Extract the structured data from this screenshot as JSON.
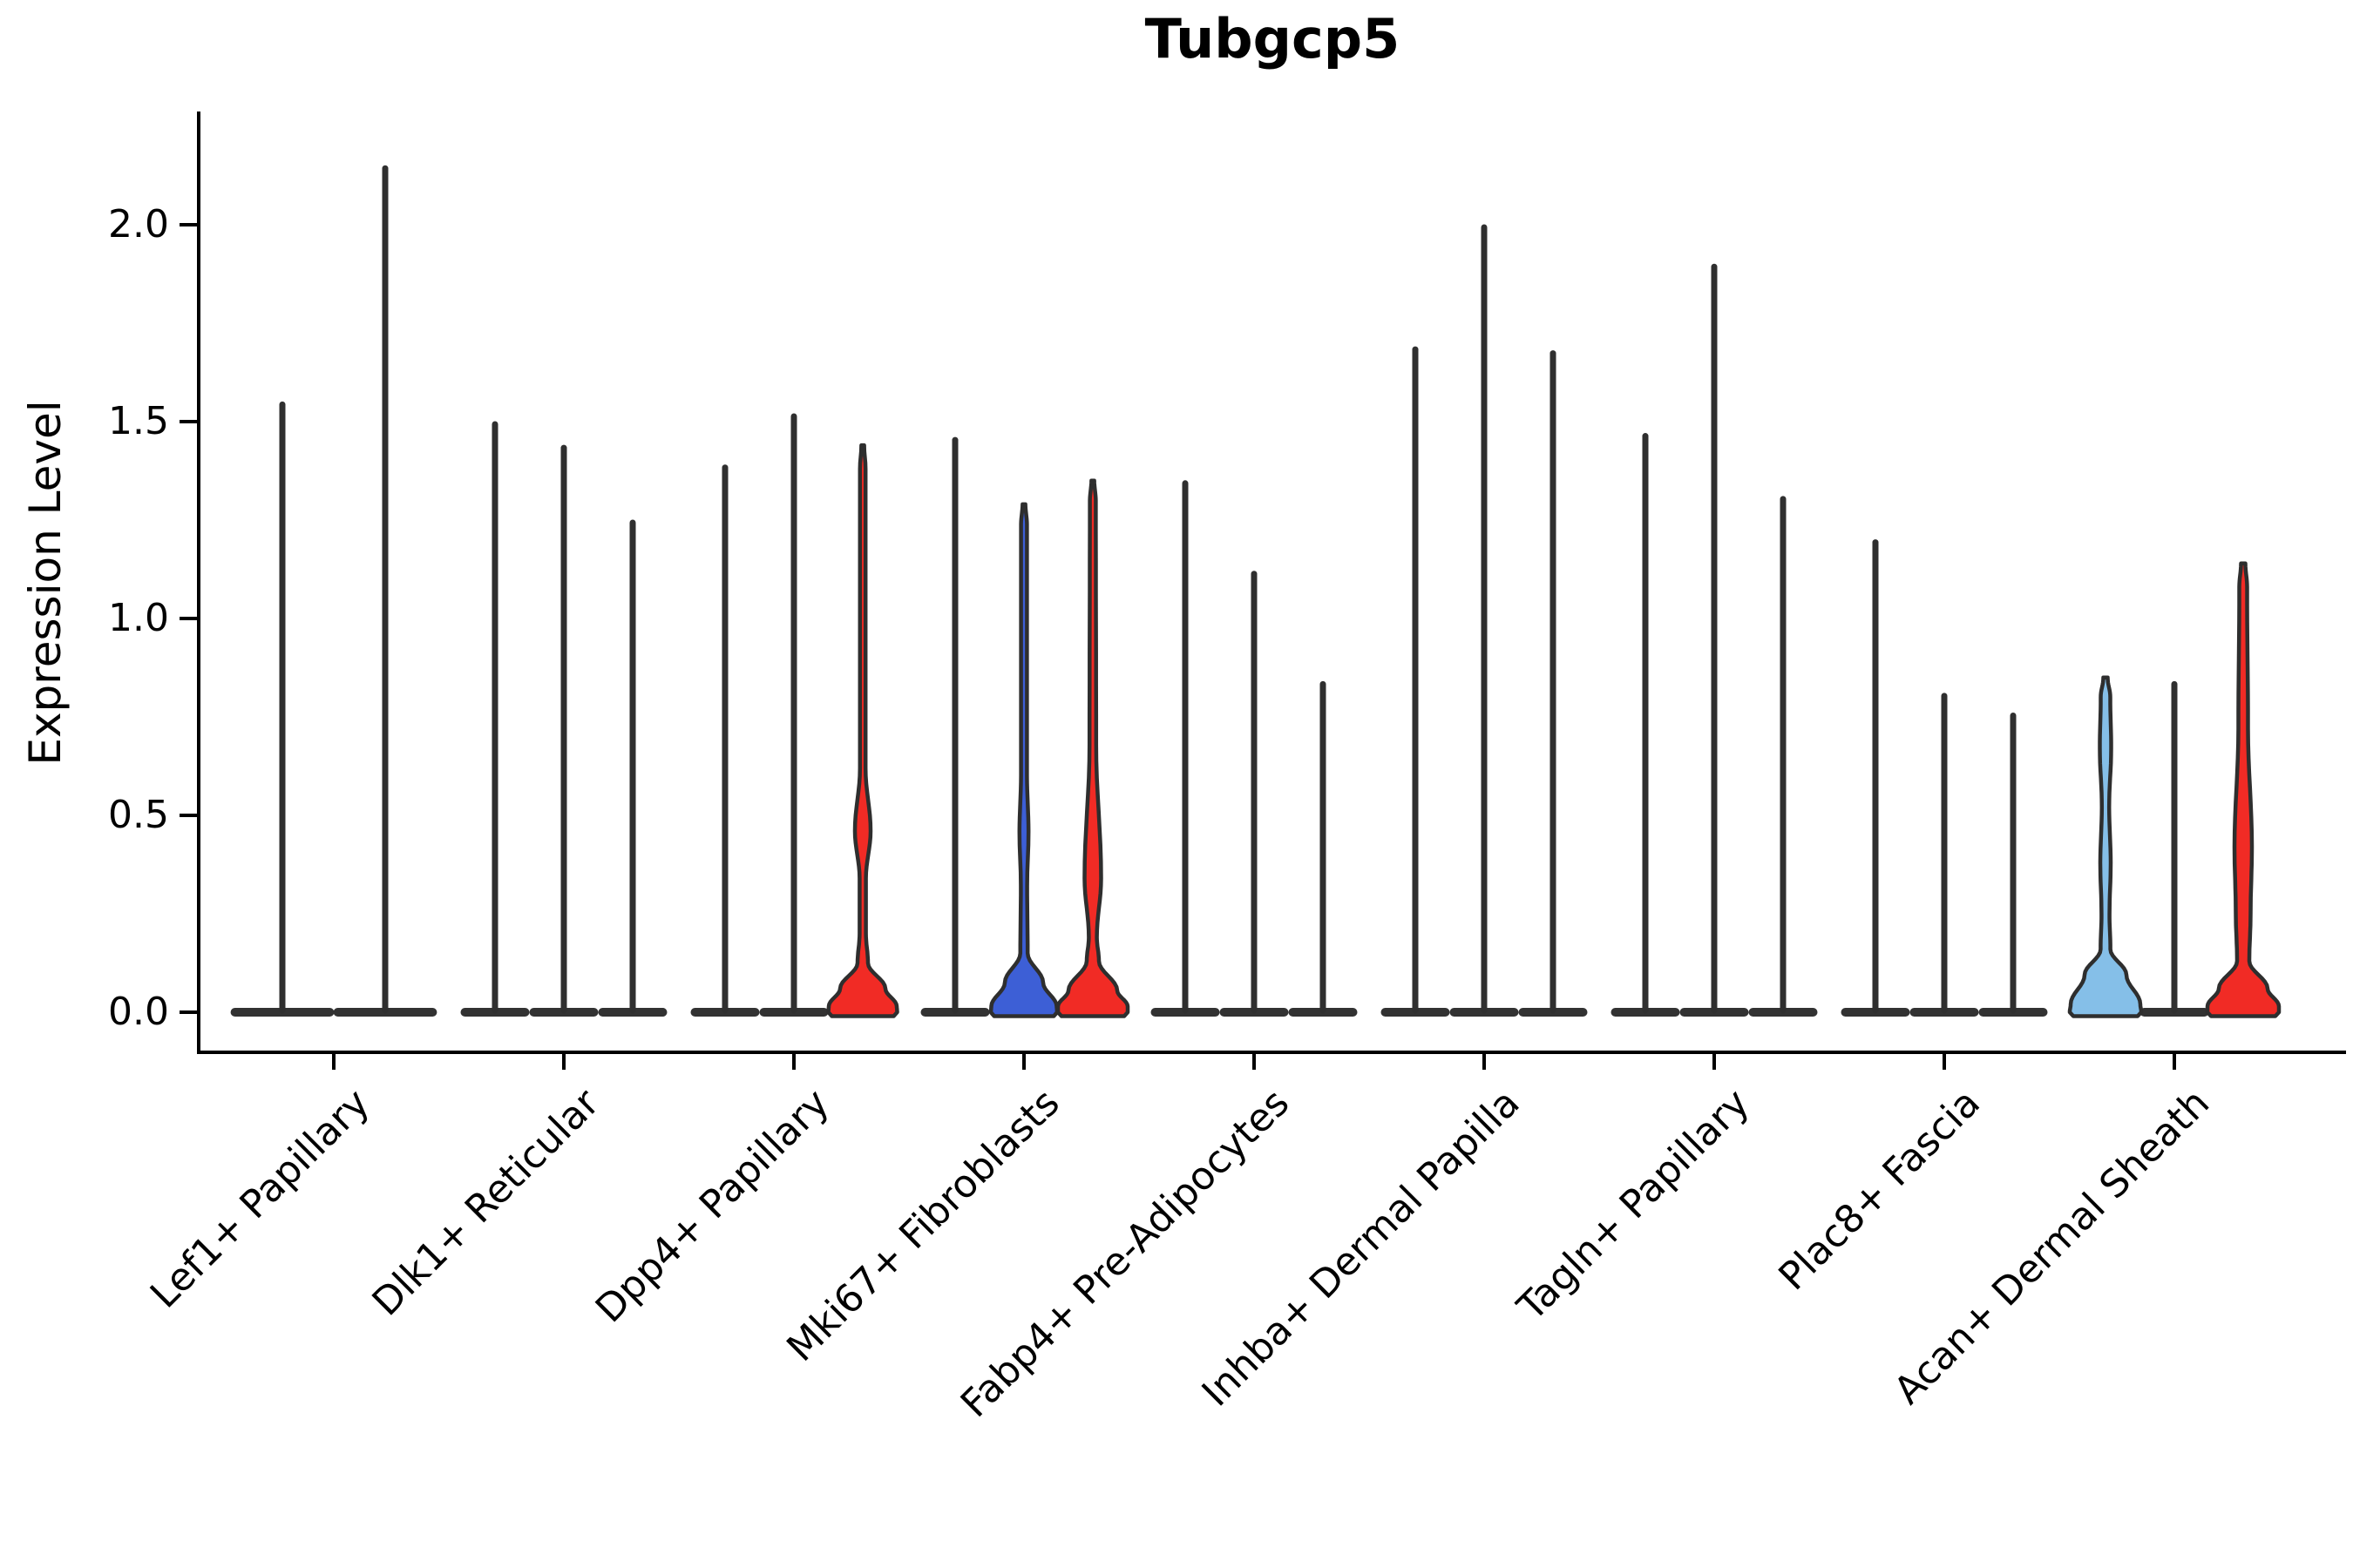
{
  "colors": {
    "red": "#F12B25",
    "blue": "#3D5FD6",
    "lightblue": "#85BFE8",
    "outline": "#2E2E2E",
    "spike": "#2F2F2F",
    "base": "#323232",
    "axis": "#000000"
  },
  "chart_data": {
    "type": "violin",
    "title": "Tubgcp5",
    "ylabel": "Expression Level",
    "xlabel": "",
    "ylim": [
      0,
      2.25
    ],
    "yticks": [
      0.0,
      0.5,
      1.0,
      1.5,
      2.0
    ],
    "grid": false,
    "legend": "none",
    "categories": [
      "Lef1+ Papillary",
      "Dlk1+ Reticular",
      "Dpp4+ Papillary",
      "Mki67+ Fibroblasts",
      "Fabp4+ Pre-Adipocytes",
      "Inhba+ Dermal Papilla",
      "Tagln+ Papillary",
      "Plac8+ Fascia",
      "Acan+ Dermal Sheath"
    ],
    "groups": [
      {
        "label": "Lef1+ Papillary",
        "center": 383,
        "slot_half": 59.4,
        "violins": [
          {
            "x": 324,
            "max": 1.55,
            "fill": null
          },
          {
            "x": 442,
            "max": 2.15,
            "fill": null
          }
        ]
      },
      {
        "label": "Dlk1+ Reticular",
        "center": 647,
        "slot_half": 39.5,
        "violins": [
          {
            "x": 568,
            "max": 1.5,
            "fill": null
          },
          {
            "x": 647,
            "max": 1.44,
            "fill": null
          },
          {
            "x": 726,
            "max": 1.25,
            "fill": null
          }
        ]
      },
      {
        "label": "Dpp4+ Papillary",
        "center": 911,
        "slot_half": 39.5,
        "violins": [
          {
            "x": 832,
            "max": 1.39,
            "fill": null
          },
          {
            "x": 911,
            "max": 1.52,
            "fill": null
          },
          {
            "x": 990,
            "max": 1.44,
            "fill": "red",
            "profile": [
              [
                1.44,
                1.6
              ],
              [
                1.38,
                3.2
              ],
              [
                0.62,
                3.2
              ],
              [
                0.46,
                9.0
              ],
              [
                0.34,
                3.6
              ],
              [
                0.2,
                3.6
              ],
              [
                0.125,
                6.0
              ],
              [
                0.06,
                26.0
              ],
              [
                0.015,
                39.0
              ],
              [
                0.0,
                39.5
              ]
            ]
          }
        ]
      },
      {
        "label": "Mki67+ Fibroblasts",
        "center": 1175,
        "slot_half": 39.5,
        "violins": [
          {
            "x": 1096,
            "max": 1.46,
            "fill": null
          },
          {
            "x": 1175,
            "max": 1.29,
            "fill": "blue",
            "profile": [
              [
                1.29,
                1.6
              ],
              [
                1.24,
                3.4
              ],
              [
                0.6,
                3.4
              ],
              [
                0.46,
                5.2
              ],
              [
                0.32,
                3.6
              ],
              [
                0.15,
                4.2
              ],
              [
                0.075,
                22.0
              ],
              [
                0.015,
                37.5
              ],
              [
                0.0,
                38.0
              ]
            ]
          },
          {
            "x": 1254,
            "max": 1.35,
            "fill": "red",
            "profile": [
              [
                1.35,
                1.6
              ],
              [
                1.3,
                3.4
              ],
              [
                0.68,
                3.8
              ],
              [
                0.34,
                9.5
              ],
              [
                0.19,
                4.6
              ],
              [
                0.13,
                7.0
              ],
              [
                0.055,
                28.0
              ],
              [
                0.015,
                40.0
              ],
              [
                0.0,
                40.0
              ]
            ]
          }
        ]
      },
      {
        "label": "Fabp4+ Pre-Adipocytes",
        "center": 1439,
        "slot_half": 39.5,
        "violins": [
          {
            "x": 1360,
            "max": 1.35,
            "fill": null
          },
          {
            "x": 1439,
            "max": 1.12,
            "fill": null
          },
          {
            "x": 1518,
            "max": 0.84,
            "fill": null
          }
        ]
      },
      {
        "label": "Inhba+ Dermal Papilla",
        "center": 1703,
        "slot_half": 39.5,
        "violins": [
          {
            "x": 1624,
            "max": 1.69,
            "fill": null
          },
          {
            "x": 1703,
            "max": 2.0,
            "fill": null
          },
          {
            "x": 1782,
            "max": 1.68,
            "fill": null
          }
        ]
      },
      {
        "label": "Tagln+ Papillary",
        "center": 1967,
        "slot_half": 39.5,
        "violins": [
          {
            "x": 1888,
            "max": 1.47,
            "fill": null
          },
          {
            "x": 1967,
            "max": 1.9,
            "fill": null
          },
          {
            "x": 2046,
            "max": 1.31,
            "fill": null
          }
        ]
      },
      {
        "label": "Plac8+ Fascia",
        "center": 2231,
        "slot_half": 39.5,
        "violins": [
          {
            "x": 2152,
            "max": 1.2,
            "fill": null
          },
          {
            "x": 2231,
            "max": 0.81,
            "fill": null
          },
          {
            "x": 2310,
            "max": 0.76,
            "fill": null
          }
        ]
      },
      {
        "label": "Acan+ Dermal Sheath",
        "center": 2495,
        "slot_half": 39.5,
        "violins": [
          {
            "x": 2416,
            "max": 0.85,
            "fill": "lightblue",
            "profile": [
              [
                0.85,
                2.5
              ],
              [
                0.8,
                5.5
              ],
              [
                0.67,
                6.5
              ],
              [
                0.52,
                4.2
              ],
              [
                0.38,
                6.0
              ],
              [
                0.25,
                4.6
              ],
              [
                0.16,
                5.6
              ],
              [
                0.095,
                24.0
              ],
              [
                0.02,
                40.0
              ],
              [
                0.0,
                41.0
              ]
            ]
          },
          {
            "x": 2495,
            "max": 0.84,
            "fill": null
          },
          {
            "x": 2574,
            "max": 1.14,
            "fill": "red",
            "profile": [
              [
                1.14,
                2.5
              ],
              [
                1.08,
                4.5
              ],
              [
                0.72,
                5.5
              ],
              [
                0.42,
                10.0
              ],
              [
                0.25,
                8.5
              ],
              [
                0.13,
                7.0
              ],
              [
                0.06,
                28.0
              ],
              [
                0.015,
                41.0
              ],
              [
                0.0,
                41.0
              ]
            ]
          }
        ]
      }
    ]
  }
}
